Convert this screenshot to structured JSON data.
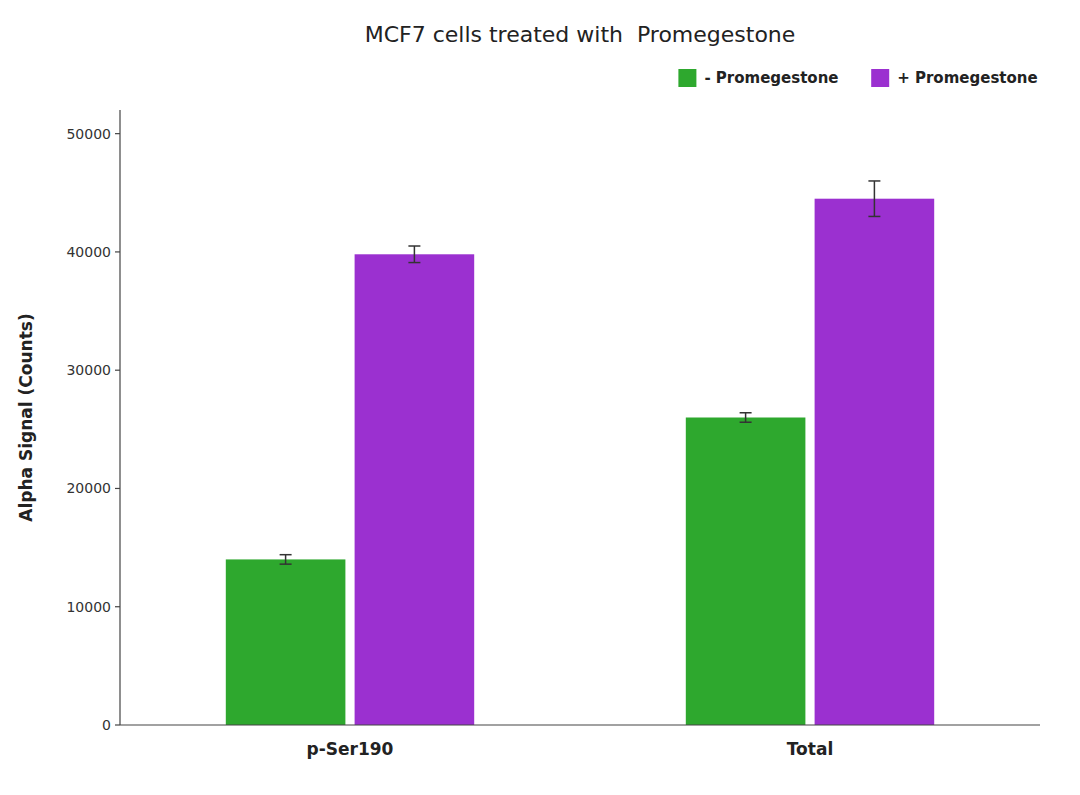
{
  "chart_data": {
    "type": "bar",
    "title": "MCF7 cells treated with  Promegestone",
    "ylabel": "Alpha Signal (Counts)",
    "categories": [
      "p-Ser190",
      "Total"
    ],
    "series": [
      {
        "name": "- Promegestone",
        "color": "#2ea82e",
        "values": [
          14000,
          26000
        ],
        "errors": [
          400,
          400
        ]
      },
      {
        "name": "+ Promegestone",
        "color": "#9b30d0",
        "values": [
          39800,
          44500
        ],
        "errors": [
          700,
          1500
        ]
      }
    ],
    "ylim": [
      0,
      52000
    ],
    "yticks": [
      0,
      10000,
      20000,
      30000,
      40000,
      50000
    ],
    "grid": false,
    "legend": "upper right"
  }
}
